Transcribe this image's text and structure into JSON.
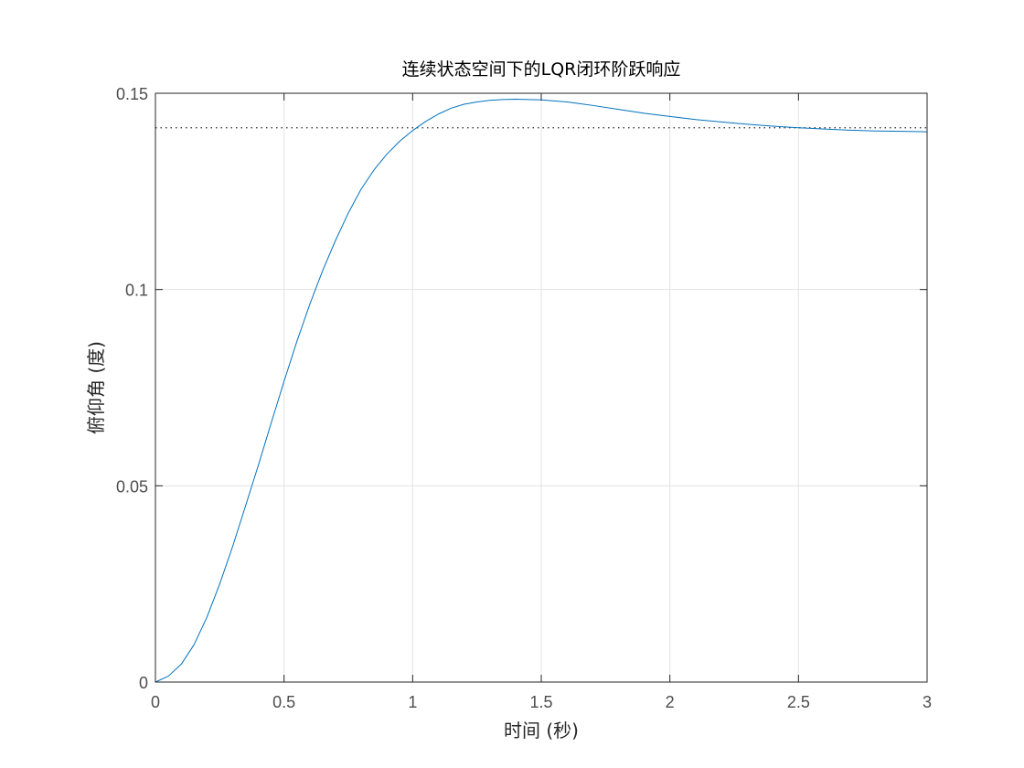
{
  "chart_data": {
    "type": "line",
    "title": "连续状态空间下的LQR闭环阶跃响应",
    "xlabel": "时间  (秒)",
    "ylabel": "俯仰角 (度)",
    "xlim": [
      0,
      3
    ],
    "ylim": [
      0,
      0.15
    ],
    "xticks": [
      0,
      0.5,
      1,
      1.5,
      2,
      2.5,
      3
    ],
    "xtick_labels": [
      "0",
      "0.5",
      "1",
      "1.5",
      "2",
      "2.5",
      "3"
    ],
    "yticks": [
      0,
      0.05,
      0.1,
      0.15
    ],
    "ytick_labels": [
      "0",
      "0.05",
      "0.1",
      "0.15"
    ],
    "grid": true,
    "series": [
      {
        "color": "#0072BD",
        "x": [
          0,
          0.05,
          0.1,
          0.15,
          0.2,
          0.25,
          0.3,
          0.35,
          0.4,
          0.45,
          0.5,
          0.55,
          0.6,
          0.65,
          0.7,
          0.75,
          0.8,
          0.85,
          0.9,
          0.95,
          1.0,
          1.05,
          1.1,
          1.15,
          1.2,
          1.25,
          1.3,
          1.35,
          1.4,
          1.45,
          1.5,
          1.6,
          1.7,
          1.8,
          1.9,
          2.0,
          2.1,
          2.2,
          2.3,
          2.4,
          2.5,
          2.6,
          2.7,
          2.8,
          2.9,
          3.0
        ],
        "y": [
          0,
          0.0015,
          0.0045,
          0.0095,
          0.0165,
          0.025,
          0.0345,
          0.0448,
          0.0552,
          0.066,
          0.0766,
          0.0868,
          0.0962,
          0.1048,
          0.1125,
          0.1195,
          0.1256,
          0.1305,
          0.1345,
          0.1378,
          0.1405,
          0.1428,
          0.1447,
          0.1462,
          0.1472,
          0.1478,
          0.1482,
          0.1484,
          0.1485,
          0.1484,
          0.1483,
          0.1478,
          0.1469,
          0.1459,
          0.1449,
          0.1441,
          0.1433,
          0.1427,
          0.1421,
          0.1416,
          0.1412,
          0.1409,
          0.1406,
          0.1404,
          0.1403,
          0.1402
        ]
      }
    ],
    "reference_line": {
      "y": 0.1412,
      "style": "dotted",
      "color": "#262626"
    }
  }
}
